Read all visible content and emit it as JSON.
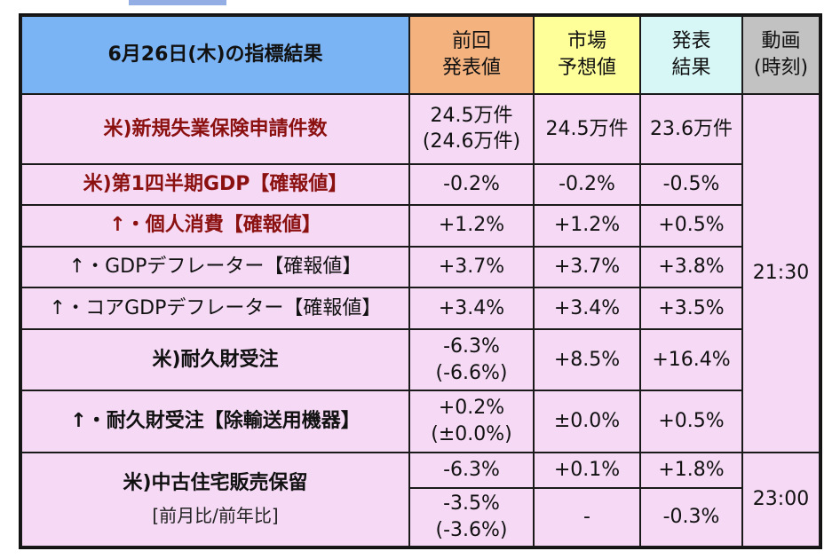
{
  "header": {
    "title": "6月26日(木)の指標結果",
    "prev": [
      "前回",
      "発表値"
    ],
    "expect": [
      "市場",
      "予想値"
    ],
    "result": [
      "発表",
      "結果"
    ],
    "time": [
      "動画",
      "(時刻)"
    ]
  },
  "rows": [
    {
      "name": "米)新規失業保険申請件数",
      "prev": [
        "24.5万件",
        "(24.6万件)"
      ],
      "expect": "24.5万件",
      "result": "23.6万件"
    },
    {
      "name": "米)第1四半期GDP【確報値】",
      "prev": [
        "-0.2%"
      ],
      "expect": "-0.2%",
      "result": "-0.5%"
    },
    {
      "name": "↑・個人消費【確報値】",
      "prev": [
        "+1.2%"
      ],
      "expect": "+1.2%",
      "result": "+0.5%"
    },
    {
      "name": "↑・GDPデフレーター【確報値】",
      "prev": [
        "+3.7%"
      ],
      "expect": "+3.7%",
      "result": "+3.8%"
    },
    {
      "name": "↑・コアGDPデフレーター【確報値】",
      "prev": [
        "+3.4%"
      ],
      "expect": "+3.4%",
      "result": "+3.5%"
    },
    {
      "name": "米)耐久財受注",
      "prev": [
        "-6.3%",
        "(-6.6%)"
      ],
      "expect": "+8.5%",
      "result": "+16.4%"
    },
    {
      "name": "↑・耐久財受注【除輸送用機器】",
      "prev": [
        "+0.2%",
        "(±0.0%)"
      ],
      "expect": "±0.0%",
      "result": "+0.5%"
    },
    {
      "name": "米)中古住宅販売保留",
      "sub": "[前月比/前年比]",
      "prev": [
        "-6.3%"
      ],
      "expect": "+0.1%",
      "result": "+1.8%"
    },
    {
      "prev": [
        "-3.5%",
        "(-3.6%)"
      ],
      "expect": "-",
      "result": "-0.3%"
    }
  ],
  "times": {
    "group1": "21:30",
    "group2": "23:00"
  }
}
